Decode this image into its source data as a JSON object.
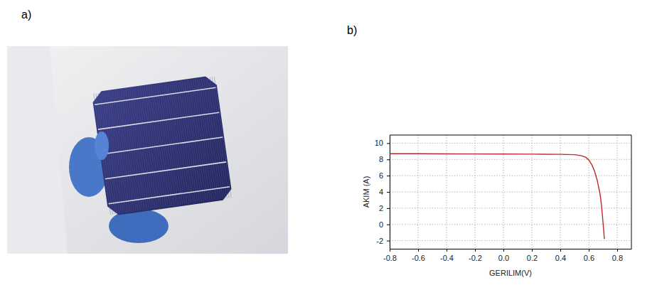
{
  "panel_labels": [
    "a)",
    "b)"
  ],
  "chart_data": {
    "type": "line",
    "x_label": "GERILIM(V)",
    "y_label": "AKIM (A)",
    "x": [
      -0.8,
      -0.6,
      -0.4,
      -0.2,
      0.0,
      0.2,
      0.4,
      0.5,
      0.55,
      0.58,
      0.6,
      0.62,
      0.64,
      0.66,
      0.68,
      0.69,
      0.7,
      0.71
    ],
    "values": [
      8.7,
      8.7,
      8.68,
      8.67,
      8.66,
      8.65,
      8.63,
      8.58,
      8.45,
      8.25,
      7.95,
      7.4,
      6.6,
      5.4,
      3.7,
      2.3,
      0.3,
      -1.8
    ],
    "color": "#c0282d",
    "xlim": [
      -0.8,
      0.9
    ],
    "xticks": [
      -0.8,
      -0.6,
      -0.4,
      -0.2,
      {
        "value": 0,
        "label": "0.0"
      },
      0.2,
      0.4,
      0.6,
      0.8
    ],
    "ylim": [
      -3,
      11
    ],
    "yticks": [
      -2,
      0,
      2,
      4,
      6,
      8,
      10
    ],
    "grid": true
  }
}
